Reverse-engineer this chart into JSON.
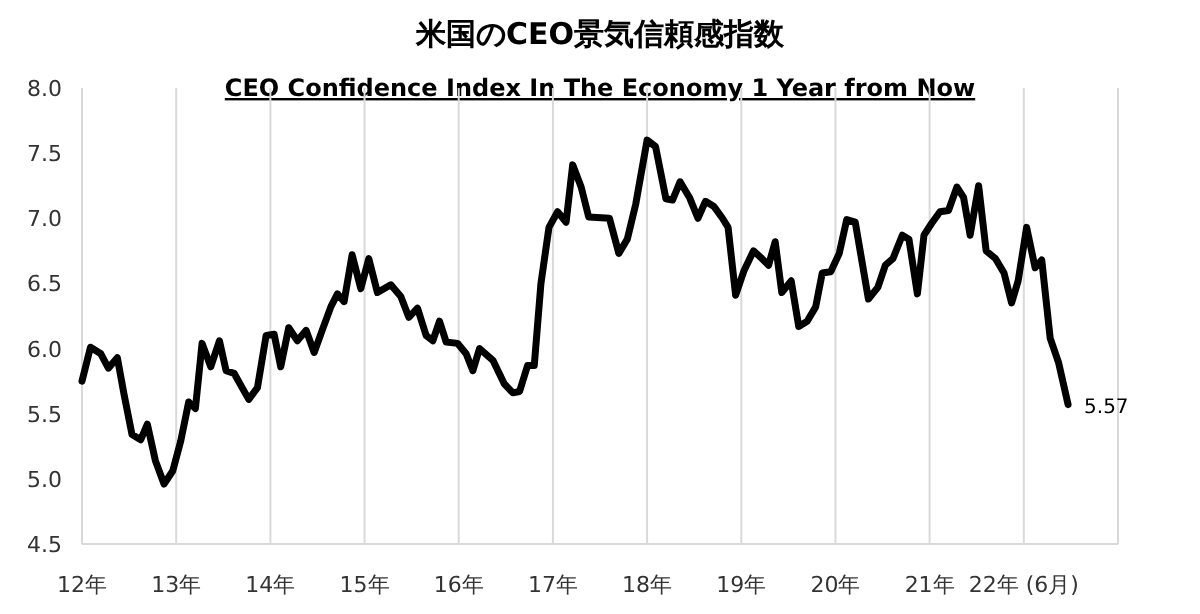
{
  "chart_data": {
    "type": "line",
    "title": "米国のCEO景気信頼感指数",
    "subtitle": "CEO Confidence Index In The Economy 1 Year from Now",
    "x": [
      12.0,
      12.09,
      12.2,
      12.28,
      12.375,
      12.446,
      12.531,
      12.623,
      12.694,
      12.779,
      12.871,
      12.963,
      13.048,
      13.133,
      13.204,
      13.275,
      13.367,
      13.459,
      13.53,
      13.615,
      13.7,
      13.771,
      13.863,
      13.955,
      14.04,
      14.11,
      14.195,
      14.287,
      14.38,
      14.465,
      14.55,
      14.642,
      14.712,
      14.783,
      14.868,
      14.96,
      15.045,
      15.137,
      15.279,
      15.385,
      15.47,
      15.562,
      15.654,
      15.725,
      15.796,
      15.867,
      15.987,
      16.079,
      16.15,
      16.221,
      16.363,
      16.483,
      16.575,
      16.646,
      16.731,
      16.802,
      16.873,
      16.958,
      17.05,
      17.14,
      17.21,
      17.3,
      17.38,
      17.6,
      17.7,
      17.79,
      17.88,
      18.0,
      18.09,
      18.2,
      18.27,
      18.35,
      18.45,
      18.54,
      18.62,
      18.71,
      18.8,
      18.86,
      18.94,
      19.03,
      19.13,
      19.22,
      19.29,
      19.36,
      19.43,
      19.53,
      19.61,
      19.7,
      19.79,
      19.86,
      19.95,
      20.04,
      20.12,
      20.21,
      20.35,
      20.45,
      20.53,
      20.61,
      20.71,
      20.78,
      20.87,
      20.94,
      21.02,
      21.11,
      21.2,
      21.29,
      21.36,
      21.43,
      21.52,
      21.6,
      21.7,
      21.79,
      21.87,
      21.94,
      22.03,
      22.12,
      22.19,
      22.28,
      22.37,
      22.47
    ],
    "series": [
      {
        "color": "#000000",
        "values": [
          5.75,
          6.01,
          5.96,
          5.85,
          5.93,
          5.65,
          5.34,
          5.3,
          5.42,
          5.14,
          4.96,
          5.06,
          5.29,
          5.59,
          5.54,
          6.04,
          5.86,
          6.06,
          5.83,
          5.81,
          5.7,
          5.61,
          5.7,
          6.1,
          6.11,
          5.86,
          6.16,
          6.06,
          6.14,
          5.97,
          6.14,
          6.32,
          6.42,
          6.36,
          6.72,
          6.46,
          6.69,
          6.43,
          6.49,
          6.4,
          6.24,
          6.31,
          6.1,
          6.06,
          6.21,
          6.05,
          6.04,
          5.96,
          5.83,
          6.0,
          5.91,
          5.73,
          5.66,
          5.67,
          5.87,
          5.87,
          6.5,
          6.93,
          7.05,
          6.97,
          7.41,
          7.24,
          7.01,
          7.0,
          6.73,
          6.84,
          7.11,
          7.6,
          7.55,
          7.15,
          7.14,
          7.28,
          7.16,
          7.0,
          7.13,
          7.09,
          7.0,
          6.93,
          6.41,
          6.6,
          6.75,
          6.69,
          6.64,
          6.82,
          6.43,
          6.52,
          6.17,
          6.21,
          6.32,
          6.58,
          6.59,
          6.73,
          6.99,
          6.97,
          6.38,
          6.47,
          6.64,
          6.69,
          6.87,
          6.84,
          6.42,
          6.87,
          6.96,
          7.05,
          7.06,
          7.24,
          7.16,
          6.87,
          7.25,
          6.75,
          6.69,
          6.58,
          6.35,
          6.52,
          6.93,
          6.62,
          6.68,
          6.08,
          5.89,
          5.57
        ]
      }
    ],
    "xlim": [
      12,
      23
    ],
    "xticks": [
      {
        "value": 12,
        "label": "12年"
      },
      {
        "value": 13,
        "label": "13年"
      },
      {
        "value": 14,
        "label": "14年"
      },
      {
        "value": 15,
        "label": "15年"
      },
      {
        "value": 16,
        "label": "16年"
      },
      {
        "value": 17,
        "label": "17年"
      },
      {
        "value": 18,
        "label": "18年"
      },
      {
        "value": 19,
        "label": "19年"
      },
      {
        "value": 20,
        "label": "20年"
      },
      {
        "value": 21,
        "label": "21年"
      },
      {
        "value": 22,
        "label": "22年 (6月)"
      },
      {
        "value": 23,
        "label": null
      }
    ],
    "ylim": [
      4.5,
      8.0
    ],
    "yticks": [
      {
        "value": 4.5,
        "label": "4.5"
      },
      {
        "value": 5.0,
        "label": "5.0"
      },
      {
        "value": 5.5,
        "label": "5.5"
      },
      {
        "value": 6.0,
        "label": "6.0"
      },
      {
        "value": 6.5,
        "label": "6.5"
      },
      {
        "value": 7.0,
        "label": "7.0"
      },
      {
        "value": 7.5,
        "label": "7.5"
      },
      {
        "value": 8.0,
        "label": "8.0"
      }
    ],
    "grid": "x",
    "annotations": [
      {
        "text": "5.57",
        "x": 22.47,
        "y": 5.57
      }
    ]
  }
}
